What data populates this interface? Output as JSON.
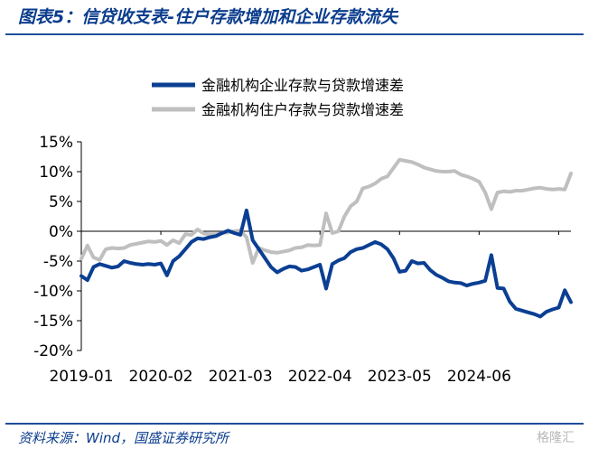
{
  "header": {
    "title": "图表5：信贷收支表-住户存款增加和企业存款流失"
  },
  "footer": {
    "source": "资料来源：Wind，国盛证券研究所",
    "watermark": "格隆汇"
  },
  "chart_data": {
    "type": "line",
    "title": "",
    "xlabel": "",
    "ylabel": "",
    "ylim": [
      -20,
      15
    ],
    "yticks": [
      15,
      10,
      5,
      0,
      -5,
      -10,
      -15,
      -20
    ],
    "ytick_labels": [
      "15%",
      "10%",
      "5%",
      "0%",
      "-5%",
      "-10%",
      "-15%",
      "-20%"
    ],
    "x_tick_labels": [
      "2019-01",
      "2020-02",
      "2021-03",
      "2022-04",
      "2023-05",
      "2024-06"
    ],
    "x_tick_index": [
      0,
      13,
      26,
      39,
      52,
      65
    ],
    "legend": "top-center",
    "grid": false,
    "series": [
      {
        "name": "金融机构企业存款与贷款增速差",
        "color": "#0a3f93",
        "values": [
          -7.5,
          -8.2,
          -6.0,
          -5.5,
          -5.8,
          -6.1,
          -5.9,
          -5.0,
          -5.3,
          -5.5,
          -5.6,
          -5.5,
          -5.6,
          -5.4,
          -7.4,
          -5.0,
          -4.2,
          -3.0,
          -1.8,
          -1.2,
          -1.3,
          -1.0,
          -0.8,
          -0.3,
          0.1,
          -0.3,
          -0.6,
          3.5,
          -1.5,
          -3.0,
          -4.5,
          -6.0,
          -6.9,
          -6.3,
          -5.9,
          -6.0,
          -6.6,
          -6.4,
          -6.0,
          -5.6,
          -9.6,
          -5.5,
          -4.9,
          -4.5,
          -3.5,
          -3.0,
          -2.8,
          -2.3,
          -1.8,
          -2.2,
          -3.0,
          -4.5,
          -6.8,
          -6.6,
          -5.0,
          -5.4,
          -5.3,
          -6.5,
          -7.3,
          -7.8,
          -8.4,
          -8.6,
          -8.7,
          -9.1,
          -8.8,
          -8.6,
          -8.3,
          -4.0,
          -9.5,
          -9.6,
          -11.8,
          -13.0,
          -13.3,
          -13.6,
          -13.9,
          -14.3,
          -13.5,
          -13.1,
          -12.8,
          -9.9,
          -11.9
        ]
      },
      {
        "name": "金融机构住户存款与贷款增速差",
        "color": "#bfbfbf",
        "values": [
          -4.6,
          -2.4,
          -4.4,
          -4.8,
          -3.0,
          -2.8,
          -2.9,
          -2.8,
          -2.3,
          -2.1,
          -1.9,
          -1.7,
          -1.8,
          -1.6,
          -2.3,
          -1.5,
          -2.0,
          -0.5,
          -0.6,
          0.3,
          -0.4,
          -0.5,
          -0.5,
          -0.3,
          -0.2,
          0.0,
          0.1,
          -1.0,
          -5.3,
          -2.8,
          -3.2,
          -3.5,
          -3.6,
          -3.4,
          -3.2,
          -2.8,
          -2.7,
          -2.3,
          -2.4,
          -2.3,
          3.0,
          -0.3,
          0.0,
          2.5,
          4.2,
          5.0,
          7.2,
          7.5,
          8.0,
          8.8,
          9.2,
          10.6,
          12.0,
          11.8,
          11.6,
          11.2,
          10.7,
          10.4,
          10.1,
          10.0,
          10.0,
          10.1,
          9.5,
          9.2,
          8.8,
          8.3,
          6.5,
          3.7,
          6.5,
          6.7,
          6.6,
          6.8,
          6.8,
          7.0,
          7.2,
          7.3,
          7.1,
          7.0,
          7.1,
          7.0,
          9.7
        ]
      }
    ]
  }
}
